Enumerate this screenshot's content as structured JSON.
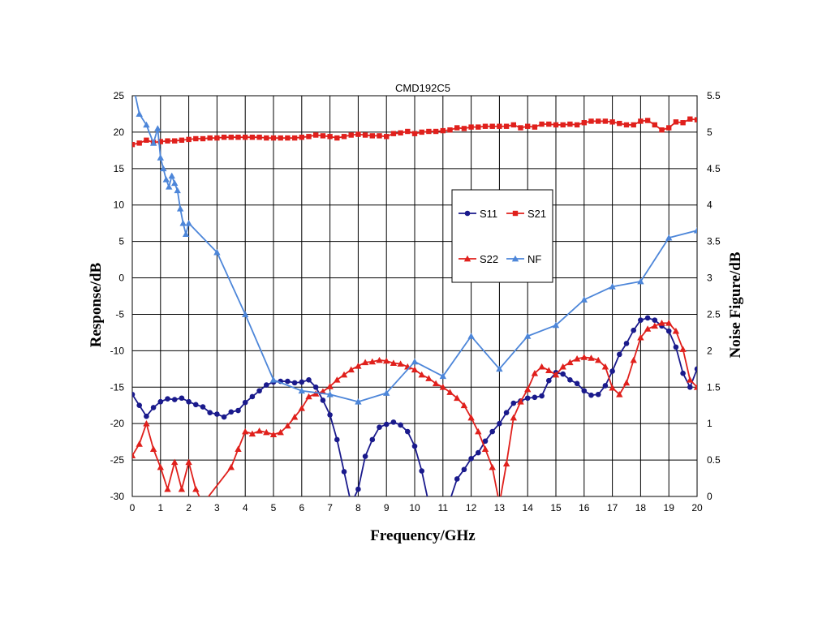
{
  "chart_data": {
    "type": "line",
    "title": "CMD192C5",
    "xlabel": "Frequency/GHz",
    "ylabel": "Response/dB",
    "y2label": "Noise Figure/dB",
    "xlim": [
      0,
      20
    ],
    "ylim": [
      -30,
      25
    ],
    "y2lim": [
      0,
      5.5
    ],
    "x_ticks": [
      "0",
      "1",
      "2",
      "3",
      "4",
      "5",
      "6",
      "7",
      "8",
      "9",
      "10",
      "11",
      "12",
      "13",
      "14",
      "15",
      "16",
      "17",
      "18",
      "19",
      "20"
    ],
    "y_ticks": [
      "25",
      "20",
      "15",
      "10",
      "5",
      "0",
      "-5",
      "-10",
      "-15",
      "-20",
      "-25",
      "-30"
    ],
    "y2_ticks": [
      "5.5",
      "5",
      "4.5",
      "4",
      "3.5",
      "3",
      "2.5",
      "2",
      "1.5",
      "1",
      "0.5",
      "0"
    ],
    "grid": true,
    "legend_position": "center-right",
    "series": [
      {
        "name": "S11",
        "color": "#1a1a8c",
        "marker": "circle",
        "axis": "left",
        "x": [
          0,
          0.25,
          0.5,
          0.75,
          1,
          1.25,
          1.5,
          1.75,
          2,
          2.25,
          2.5,
          2.75,
          3,
          3.25,
          3.5,
          3.75,
          4,
          4.25,
          4.5,
          4.75,
          5,
          5.25,
          5.5,
          5.75,
          6,
          6.25,
          6.5,
          6.75,
          7,
          7.25,
          7.5,
          7.75,
          8,
          8.25,
          8.5,
          8.75,
          9,
          9.25,
          9.5,
          9.75,
          10,
          10.25,
          10.5,
          11.25,
          11.5,
          11.75,
          12,
          12.25,
          12.5,
          12.75,
          13,
          13.25,
          13.5,
          13.75,
          14,
          14.25,
          14.5,
          14.75,
          15,
          15.25,
          15.5,
          15.75,
          16,
          16.25,
          16.5,
          16.75,
          17,
          17.25,
          17.5,
          17.75,
          18,
          18.25,
          18.5,
          18.75,
          19,
          19.25,
          19.5,
          19.75,
          20
        ],
        "y": [
          -16,
          -17.5,
          -19,
          -17.8,
          -17,
          -16.6,
          -16.7,
          -16.5,
          -17,
          -17.4,
          -17.7,
          -18.5,
          -18.7,
          -19.1,
          -18.4,
          -18.2,
          -17.1,
          -16.3,
          -15.5,
          -14.7,
          -14.3,
          -14.2,
          -14.2,
          -14.4,
          -14.3,
          -14,
          -15,
          -16.8,
          -18.8,
          -22.2,
          -26.6,
          -31,
          -29,
          -24.5,
          -22.2,
          -20.5,
          -20.1,
          -19.8,
          -20.2,
          -21.1,
          -23.1,
          -26.5,
          -31,
          -30.5,
          -27.6,
          -26.3,
          -24.8,
          -24,
          -22.4,
          -21.1,
          -20,
          -18.5,
          -17.2,
          -16.9,
          -16.5,
          -16.4,
          -16.2,
          -14.1,
          -13,
          -13.2,
          -14,
          -14.5,
          -15.5,
          -16.1,
          -16,
          -14.8,
          -12.8,
          -10.5,
          -9,
          -7.2,
          -5.8,
          -5.5,
          -5.8,
          -6.6,
          -7.3,
          -9.5,
          -13.1,
          -15,
          -12.5
        ]
      },
      {
        "name": "S21",
        "color": "#e0201c",
        "marker": "square",
        "axis": "left",
        "x": [
          0,
          0.25,
          0.5,
          0.75,
          1,
          1.25,
          1.5,
          1.75,
          2,
          2.25,
          2.5,
          2.75,
          3,
          3.25,
          3.5,
          3.75,
          4,
          4.25,
          4.5,
          4.75,
          5,
          5.25,
          5.5,
          5.75,
          6,
          6.25,
          6.5,
          6.75,
          7,
          7.25,
          7.5,
          7.75,
          8,
          8.25,
          8.5,
          8.75,
          9,
          9.25,
          9.5,
          9.75,
          10,
          10.25,
          10.5,
          10.75,
          11,
          11.25,
          11.5,
          11.75,
          12,
          12.25,
          12.5,
          12.75,
          13,
          13.25,
          13.5,
          13.75,
          14,
          14.25,
          14.5,
          14.75,
          15,
          15.25,
          15.5,
          15.75,
          16,
          16.25,
          16.5,
          16.75,
          17,
          17.25,
          17.5,
          17.75,
          18,
          18.25,
          18.5,
          18.75,
          19,
          19.25,
          19.5,
          19.75,
          20
        ],
        "y": [
          18.3,
          18.5,
          18.9,
          18.6,
          18.7,
          18.8,
          18.8,
          18.9,
          19,
          19.1,
          19.1,
          19.2,
          19.2,
          19.3,
          19.3,
          19.3,
          19.3,
          19.3,
          19.3,
          19.2,
          19.2,
          19.2,
          19.2,
          19.2,
          19.3,
          19.4,
          19.6,
          19.5,
          19.4,
          19.2,
          19.4,
          19.6,
          19.7,
          19.6,
          19.5,
          19.5,
          19.4,
          19.8,
          19.9,
          20.1,
          19.8,
          20,
          20.1,
          20.1,
          20.2,
          20.3,
          20.6,
          20.5,
          20.7,
          20.7,
          20.8,
          20.8,
          20.8,
          20.8,
          21,
          20.6,
          20.8,
          20.7,
          21.1,
          21.1,
          21,
          21,
          21.1,
          21,
          21.3,
          21.5,
          21.5,
          21.5,
          21.4,
          21.2,
          21,
          21,
          21.5,
          21.6,
          21,
          20.3,
          20.6,
          21.4,
          21.3,
          21.8,
          21.7
        ]
      },
      {
        "name": "S22",
        "color": "#e0201c",
        "marker": "triangle",
        "axis": "left",
        "x": [
          0,
          0.25,
          0.5,
          0.75,
          1,
          1.25,
          1.5,
          1.75,
          2,
          2.25,
          2.5,
          3.5,
          3.75,
          4,
          4.25,
          4.5,
          4.75,
          5,
          5.25,
          5.5,
          5.75,
          6,
          6.25,
          6.5,
          6.75,
          7,
          7.25,
          7.5,
          7.75,
          8,
          8.25,
          8.5,
          8.75,
          9,
          9.25,
          9.5,
          9.75,
          10,
          10.25,
          10.5,
          10.75,
          11,
          11.25,
          11.5,
          11.75,
          12,
          12.25,
          12.5,
          12.75,
          13,
          13.25,
          13.5,
          13.75,
          14,
          14.25,
          14.5,
          14.75,
          15,
          15.25,
          15.5,
          15.75,
          16,
          16.25,
          16.5,
          16.75,
          17,
          17.25,
          17.5,
          17.75,
          18,
          18.25,
          18.5,
          18.75,
          19,
          19.25,
          19.5,
          19.75,
          20
        ],
        "y": [
          -24.4,
          -22.8,
          -20,
          -23.5,
          -26,
          -29,
          -25.3,
          -29,
          -25.3,
          -29,
          -31,
          -26,
          -23.5,
          -21.1,
          -21.4,
          -21,
          -21.2,
          -21.5,
          -21.2,
          -20.3,
          -19.1,
          -17.9,
          -16.3,
          -15.9,
          -15.6,
          -14.9,
          -14,
          -13.3,
          -12.6,
          -12.1,
          -11.6,
          -11.5,
          -11.3,
          -11.4,
          -11.7,
          -11.8,
          -12.2,
          -12.6,
          -13.3,
          -13.8,
          -14.5,
          -15,
          -15.7,
          -16.5,
          -17.5,
          -19.2,
          -21.1,
          -23.5,
          -26,
          -31,
          -25.5,
          -19.2,
          -17,
          -15.3,
          -13.1,
          -12.2,
          -12.7,
          -13.3,
          -12.2,
          -11.6,
          -11.1,
          -10.9,
          -11,
          -11.3,
          -12.2,
          -15.1,
          -16,
          -14.4,
          -11.3,
          -8.2,
          -7,
          -6.6,
          -6.2,
          -6.2,
          -7.3,
          -9.8,
          -14,
          -15
        ]
      },
      {
        "name": "NF",
        "color": "#4d86d9",
        "marker": "triangle",
        "axis": "right",
        "x": [
          0,
          0.25,
          0.5,
          0.75,
          0.9,
          1,
          1.1,
          1.2,
          1.3,
          1.4,
          1.5,
          1.6,
          1.7,
          1.8,
          1.9,
          2,
          3,
          4,
          5,
          6,
          7,
          8,
          9,
          10,
          11,
          12,
          13,
          14,
          15,
          16,
          17,
          18,
          19,
          20
        ],
        "y": [
          5.7,
          5.25,
          5.1,
          4.85,
          5.05,
          4.65,
          4.5,
          4.35,
          4.25,
          4.4,
          4.3,
          4.2,
          3.95,
          3.75,
          3.6,
          3.75,
          3.35,
          2.5,
          1.6,
          1.45,
          1.4,
          1.3,
          1.42,
          1.85,
          1.65,
          2.2,
          1.75,
          2.2,
          2.35,
          2.7,
          2.88,
          2.95,
          3.55,
          3.65
        ]
      }
    ]
  }
}
